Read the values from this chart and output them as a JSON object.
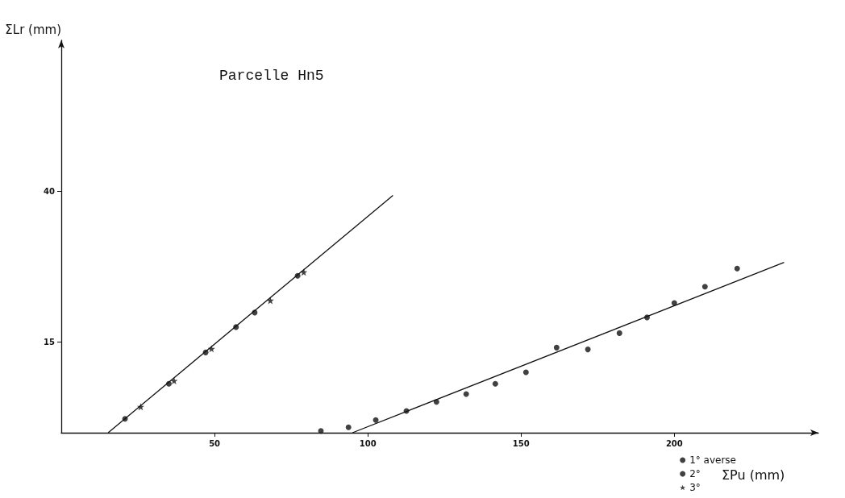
{
  "chart_data": {
    "type": "scatter",
    "title": "Parcelle Hn5",
    "xlabel": "ΣPu (mm)",
    "ylabel": "ΣLr (mm)",
    "xlim": [
      0,
      247
    ],
    "ylim": [
      0,
      65
    ],
    "xticks": [
      50,
      100,
      150,
      200
    ],
    "yticks": [
      15,
      40
    ],
    "grid": false,
    "legend": "bottom right",
    "series": [
      {
        "name": "1° averse",
        "color": "#111111",
        "marker": "circle",
        "x": [
          84.7,
          93.7,
          102.6,
          112.6,
          122.4,
          132.1,
          141.6,
          151.6,
          161.6,
          171.8,
          182.1,
          191.1,
          200,
          210,
          220.5
        ],
        "values": [
          0.3,
          0.9,
          2.1,
          3.6,
          5.1,
          6.4,
          8.1,
          10.0,
          14.1,
          13.8,
          16.5,
          19.1,
          21.5,
          24.2,
          27.2
        ]
      },
      {
        "name": "2°",
        "color": "#111111",
        "marker": "circle",
        "x": [
          20.8,
          35.1,
          47.1,
          57.0,
          63.1,
          77.1
        ],
        "values": [
          2.3,
          8.1,
          13.3,
          17.5,
          19.9,
          26.0
        ]
      },
      {
        "name": "3°",
        "color": "#111111",
        "marker": "star",
        "x": [
          25.9,
          36.8,
          49.0,
          68.2,
          79.1
        ],
        "values": [
          4.3,
          8.6,
          13.9,
          21.9,
          26.6
        ]
      },
      {
        "type": "line",
        "color": "#111111",
        "x": [
          15.3,
          108.2
        ],
        "values": [
          0,
          39.3
        ]
      },
      {
        "type": "line",
        "color": "#111111",
        "x": [
          95,
          235.8
        ],
        "values": [
          0,
          28.2
        ]
      }
    ]
  }
}
